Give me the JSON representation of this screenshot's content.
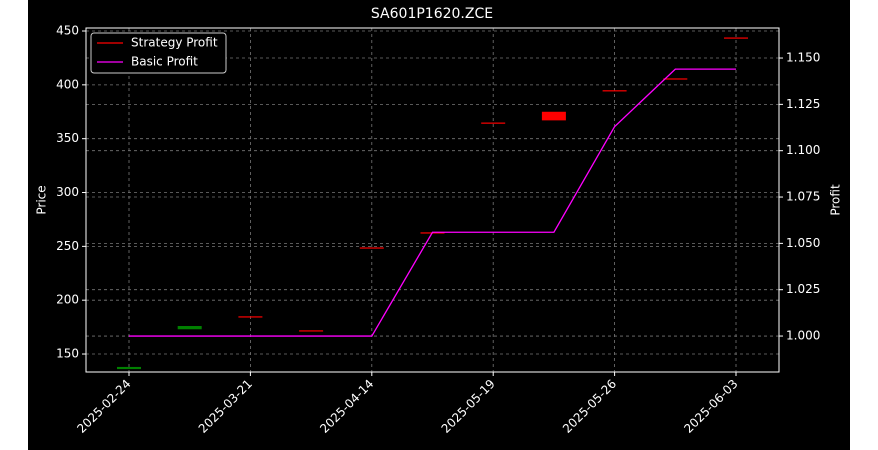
{
  "chart_data": {
    "type": "candlestick",
    "title": "SA601P1620.ZCE",
    "ylabel": "Price",
    "y2label": "Profit",
    "categories": [
      "2025-02-24",
      null,
      "2025-03-21",
      null,
      "2025-04-14",
      null,
      "2025-05-19",
      null,
      "2025-05-26",
      null,
      "2025-06-03"
    ],
    "series": [
      {
        "name": "Strategy Profit",
        "type": "candlestick",
        "color": "#ff0000",
        "up_color": "#008000",
        "open": [
          136,
          173,
          185,
          172,
          249,
          263,
          365,
          375,
          395,
          406,
          444
        ],
        "close": [
          138,
          176,
          185,
          172,
          249,
          263,
          365,
          367,
          395,
          406,
          444
        ]
      },
      {
        "name": "Basic Profit",
        "type": "line",
        "axis": "y2",
        "color": "#ff00ff",
        "values": [
          1.0,
          1.0,
          1.0,
          1.0,
          1.0,
          1.056,
          1.056,
          1.056,
          1.113,
          1.144,
          1.144
        ]
      }
    ],
    "ylim": [
      133.3,
      452.8
    ],
    "yticks": [
      150,
      200,
      250,
      300,
      350,
      400,
      450
    ],
    "y2lim": [
      0.9806,
      1.1662
    ],
    "y2ticks": [
      {
        "value": 1.0,
        "label": "1.000"
      },
      1.025,
      {
        "value": 1.05,
        "label": "1.050"
      },
      1.075,
      {
        "value": 1.1,
        "label": "1.100"
      },
      1.125,
      {
        "value": 1.15,
        "label": "1.150"
      }
    ],
    "grid": true,
    "legend": "upper left"
  }
}
